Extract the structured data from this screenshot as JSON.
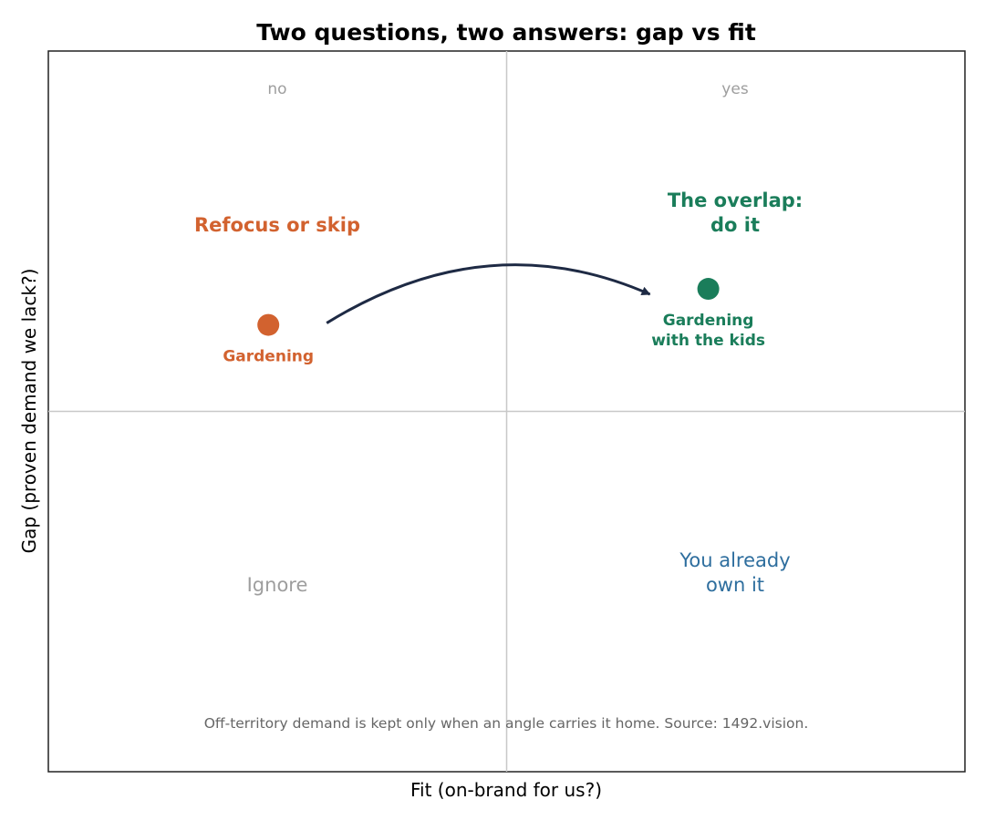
{
  "colors": {
    "orange": "#d2622f",
    "green": "#1a7d5a",
    "blue": "#2e6e9e",
    "grey": "#9e9e9e",
    "arrow": "#1e2a44",
    "divider": "#c8c8c8",
    "frame": "#222222",
    "note": "#666666"
  },
  "chart_data": {
    "type": "scatter",
    "title": "Two questions, two answers: gap vs fit",
    "xlabel": "Fit  (on-brand for us?)",
    "ylabel": "Gap  (proven demand we lack?)",
    "xlim": [
      0,
      1
    ],
    "ylim": [
      0,
      1
    ],
    "columns": [
      "no",
      "yes"
    ],
    "quadrants": {
      "top_left": {
        "lines": [
          "Refocus or skip"
        ],
        "color": "orange",
        "bold": true
      },
      "top_right": {
        "lines": [
          "The overlap:",
          "do it"
        ],
        "color": "green",
        "bold": true
      },
      "bottom_left": {
        "lines": [
          "Ignore"
        ],
        "color": "grey",
        "bold": false
      },
      "bottom_right": {
        "lines": [
          "You already",
          "own it"
        ],
        "color": "blue",
        "bold": false
      }
    },
    "points": [
      {
        "label": [
          "Gardening"
        ],
        "x": 0.24,
        "y": 0.62,
        "color": "orange"
      },
      {
        "label": [
          "Gardening",
          "with the kids"
        ],
        "x": 0.72,
        "y": 0.67,
        "color": "green"
      }
    ],
    "arrow": {
      "from": "Gardening",
      "to": "Gardening with the kids"
    },
    "note": "Off-territory demand is kept only when an angle carries it home.  Source: 1492.vision.",
    "grid": false
  }
}
